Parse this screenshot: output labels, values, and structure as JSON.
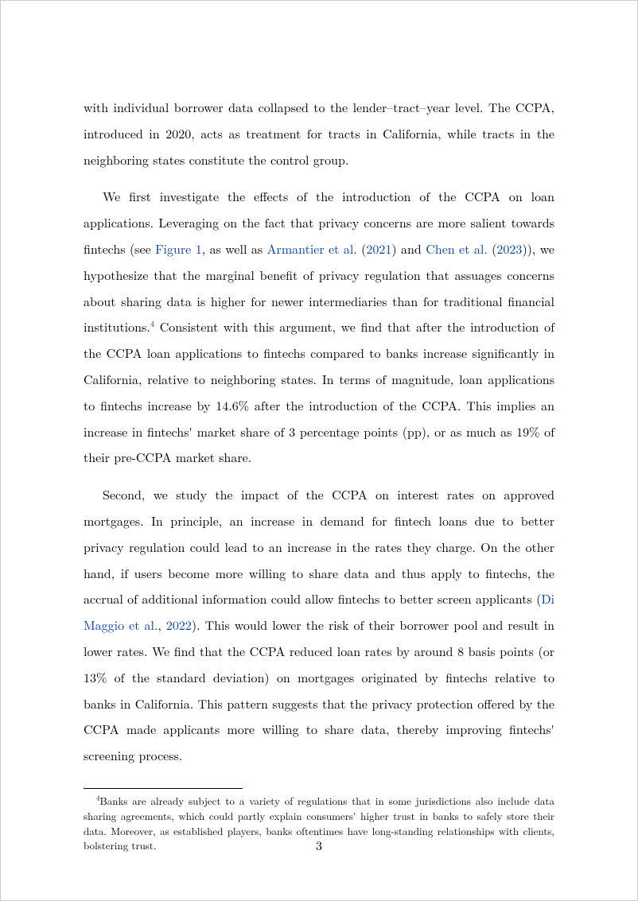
{
  "page": {
    "number": "3"
  },
  "paragraphs": {
    "p1_a": "with individual borrower data collapsed to the lender–tract–year level. The CCPA, introduced in 2020, acts as treatment for tracts in California, while tracts in the neighboring states constitute the control group.",
    "p2_a": "We first investigate the effects of the introduction of the CCPA on loan applications. Leveraging on the fact that privacy concerns are more salient towards fintechs (see ",
    "p2_link1": "Figure 1",
    "p2_b": ", as well as ",
    "p2_cite1": "Armantier et al.",
    "p2_c": " (",
    "p2_year1": "2021",
    "p2_d": ") and ",
    "p2_cite2": "Chen et al.",
    "p2_e": " (",
    "p2_year2": "2023",
    "p2_f": ")), we hypothesize that the marginal benefit of privacy regulation that assuages concerns about sharing data is higher for newer intermediaries than for traditional financial institutions.",
    "p2_fn": "4",
    "p2_g": " Consistent with this argument, we find that after the introduction of the CCPA loan applications to fintechs compared to banks increase significantly in California, relative to neighboring states. In terms of magnitude, loan applications to fintechs increase by 14.6% after the introduction of the CCPA. This implies an increase in fintechs' market share of 3 percentage points (pp), or as much as 19% of their pre-CCPA market share.",
    "p3_a": "Second, we study the impact of the CCPA on interest rates on approved mortgages. In principle, an increase in demand for fintech loans due to better privacy regulation could lead to an increase in the rates they charge. On the other hand, if users become more willing to share data and thus apply to fintechs, the accrual of additional information could allow fintechs to better screen applicants (",
    "p3_cite1": "Di Maggio et al.",
    "p3_b": ", ",
    "p3_year1": "2022",
    "p3_c": "). This would lower the risk of their borrower pool and result in lower rates. We find that the CCPA reduced loan rates by around 8 basis points (or 13% of the standard deviation) on mortgages originated by fintechs relative to banks in California. This pattern suggests that the privacy protection offered by the CCPA made applicants more willing to share data, thereby improving fintechs' screening process."
  },
  "footnote": {
    "marker": "4",
    "text": "Banks are already subject to a variety of regulations that in some jurisdictions also include data sharing agreements, which could partly explain consumers' higher trust in banks to safely store their data. Moreover, as established players, banks oftentimes have long-standing relationships with clients, bolstering trust."
  },
  "colors": {
    "citation": "#0a3f8f",
    "text": "#000000",
    "background": "#ffffff"
  },
  "typography": {
    "body_fontsize": 16,
    "body_lineheight": 2.05,
    "footnote_fontsize": 13,
    "footnote_lineheight": 1.45,
    "font_family": "Latin Modern Roman / Computer Modern (serif)"
  }
}
